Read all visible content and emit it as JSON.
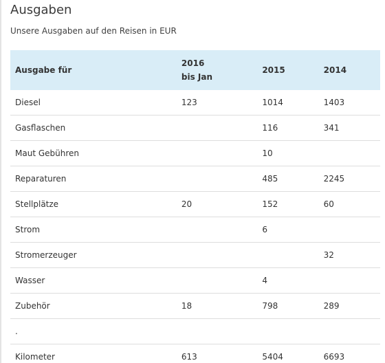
{
  "page": {
    "title": "Ausgaben",
    "subtitle": "Unsere Ausgaben auf den Reisen in EUR"
  },
  "table": {
    "headers": {
      "item": "Ausgabe für",
      "y2016_line1": "2016",
      "y2016_line2": "bis Jan",
      "y2015": "2015",
      "y2014": "2014"
    },
    "rows": [
      {
        "item": "Diesel",
        "y2016": "123",
        "y2015": "1014",
        "y2014": "1403"
      },
      {
        "item": "Gasflaschen",
        "y2016": "",
        "y2015": "116",
        "y2014": "341"
      },
      {
        "item": "Maut Gebühren",
        "y2016": "",
        "y2015": "10",
        "y2014": ""
      },
      {
        "item": "Reparaturen",
        "y2016": "",
        "y2015": "485",
        "y2014": "2245"
      },
      {
        "item": "Stellplätze",
        "y2016": "20",
        "y2015": "152",
        "y2014": "60"
      },
      {
        "item": "Strom",
        "y2016": "",
        "y2015": "6",
        "y2014": ""
      },
      {
        "item": "Stromerzeuger",
        "y2016": "",
        "y2015": "",
        "y2014": "32"
      },
      {
        "item": "Wasser",
        "y2016": "",
        "y2015": "4",
        "y2014": ""
      },
      {
        "item": "Zubehör",
        "y2016": "18",
        "y2015": "798",
        "y2014": "289"
      },
      {
        "item": ".",
        "y2016": "",
        "y2015": "",
        "y2014": ""
      },
      {
        "item": "Kilometer",
        "y2016": "613",
        "y2015": "5404",
        "y2014": "6693"
      }
    ]
  }
}
